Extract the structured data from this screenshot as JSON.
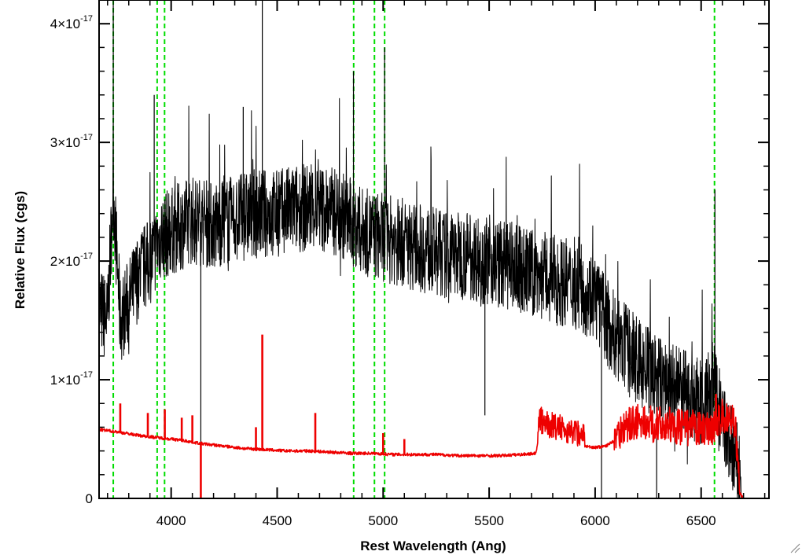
{
  "chart_data": {
    "type": "line",
    "title": "",
    "xlabel": "Rest Wavelength (Ang)",
    "ylabel": "Relative Flux (cgs)",
    "xlim": [
      3660,
      6820
    ],
    "ylim": [
      0,
      4.2e-17
    ],
    "x_ticks": [
      {
        "value": 4000,
        "label": "4000"
      },
      {
        "value": 4500,
        "label": "4500"
      },
      {
        "value": 5000,
        "label": "5000"
      },
      {
        "value": 5500,
        "label": "5500"
      },
      {
        "value": 6000,
        "label": "6000"
      },
      {
        "value": 6500,
        "label": "6500"
      }
    ],
    "y_ticks": [
      {
        "value": 0,
        "label": "0"
      },
      {
        "value": 1e-17,
        "mantissa": "1×10",
        "exponent": "-17"
      },
      {
        "value": 2e-17,
        "mantissa": "2×10",
        "exponent": "-17"
      },
      {
        "value": 3e-17,
        "mantissa": "3×10",
        "exponent": "-17"
      },
      {
        "value": 4e-17,
        "mantissa": "4×10",
        "exponent": "-17"
      }
    ],
    "grid": false,
    "reference_lines": {
      "color": "#00dd00",
      "style": "dashed",
      "x": [
        3727,
        3934,
        3969,
        4861,
        4959,
        5007,
        6563
      ]
    },
    "series": [
      {
        "color": "#000000",
        "style": "noisy",
        "x": [
          3660,
          3700,
          3727,
          3760,
          3800,
          3850,
          3900,
          3950,
          4000,
          4050,
          4100,
          4200,
          4300,
          4400,
          4500,
          4600,
          4700,
          4800,
          4900,
          5000,
          5100,
          5200,
          5300,
          5400,
          5500,
          5600,
          5700,
          5800,
          5900,
          6000,
          6050,
          6100,
          6150,
          6200,
          6300,
          6400,
          6500,
          6563,
          6600,
          6650,
          6680,
          6690,
          6820
        ],
        "y": [
          1.6e-17,
          1.5e-17,
          2.6e-17,
          1.5e-17,
          1.65e-17,
          1.9e-17,
          2e-17,
          2.2e-17,
          2.25e-17,
          2.3e-17,
          2.35e-17,
          2.3e-17,
          2.35e-17,
          2.4e-17,
          2.4e-17,
          2.45e-17,
          2.45e-17,
          2.4e-17,
          2.25e-17,
          2.2e-17,
          2.15e-17,
          2.1e-17,
          2.05e-17,
          2.05e-17,
          2e-17,
          1.95e-17,
          1.9e-17,
          1.85e-17,
          1.8e-17,
          1.7e-17,
          1.5e-17,
          1.35e-17,
          1.25e-17,
          1.15e-17,
          1e-17,
          9e-18,
          8e-18,
          9.5e-18,
          6e-18,
          4e-18,
          2e-18,
          0,
          0
        ],
        "spikes": [
          {
            "x": 3727,
            "y": 4.2e-17
          },
          {
            "x": 3920,
            "y": 3.4e-17
          },
          {
            "x": 4140,
            "y": 0
          },
          {
            "x": 4340,
            "y": 3.3e-17
          },
          {
            "x": 4430,
            "y": 4.2e-17
          },
          {
            "x": 4860,
            "y": 3.6e-17
          },
          {
            "x": 5007,
            "y": 3.8e-17
          },
          {
            "x": 5480,
            "y": 7e-18
          },
          {
            "x": 6030,
            "y": 0
          },
          {
            "x": 6290,
            "y": 0
          },
          {
            "x": 6565,
            "y": 2.6e-17
          }
        ]
      },
      {
        "color": "#ee0000",
        "style": "model",
        "x": [
          3660,
          3750,
          3850,
          3950,
          4050,
          4150,
          4250,
          4350,
          4450,
          4550,
          4650,
          4750,
          4850,
          4950,
          5050,
          5150,
          5250,
          5350,
          5450,
          5550,
          5650,
          5720,
          5740,
          5800,
          5900,
          6000,
          6050,
          6100,
          6150,
          6200,
          6300,
          6400,
          6500,
          6560,
          6600,
          6660,
          6680,
          6700,
          6820
        ],
        "y": [
          5.8e-18,
          5.6e-18,
          5.3e-18,
          5.1e-18,
          4.9e-18,
          4.6e-18,
          4.4e-18,
          4.2e-18,
          4.1e-18,
          4e-18,
          4e-18,
          3.9e-18,
          3.8e-18,
          3.8e-18,
          3.7e-18,
          3.7e-18,
          3.7e-18,
          3.6e-18,
          3.6e-18,
          3.6e-18,
          3.7e-18,
          3.8e-18,
          5.5e-18,
          5e-18,
          4.5e-18,
          4.3e-18,
          4.4e-18,
          5e-18,
          5.5e-18,
          5.8e-18,
          5.6e-18,
          5.4e-18,
          5.2e-18,
          5.5e-18,
          6.2e-18,
          6e-18,
          5e-19,
          0,
          0
        ],
        "spikes": [
          {
            "x": 3760,
            "y": 8e-18
          },
          {
            "x": 3890,
            "y": 7.2e-18
          },
          {
            "x": 3970,
            "y": 7.5e-18
          },
          {
            "x": 4050,
            "y": 6.8e-18
          },
          {
            "x": 4100,
            "y": 7e-18
          },
          {
            "x": 4140,
            "y": 0
          },
          {
            "x": 4400,
            "y": 6e-18
          },
          {
            "x": 4430,
            "y": 1.38e-17
          },
          {
            "x": 4680,
            "y": 7.2e-18
          },
          {
            "x": 5000,
            "y": 5.5e-18
          },
          {
            "x": 5100,
            "y": 5e-18
          },
          {
            "x": 5750,
            "y": 7.5e-18
          },
          {
            "x": 6570,
            "y": 8.8e-18
          }
        ]
      }
    ]
  },
  "window": {
    "resize_grip_icon": "resize-grip-icon"
  }
}
